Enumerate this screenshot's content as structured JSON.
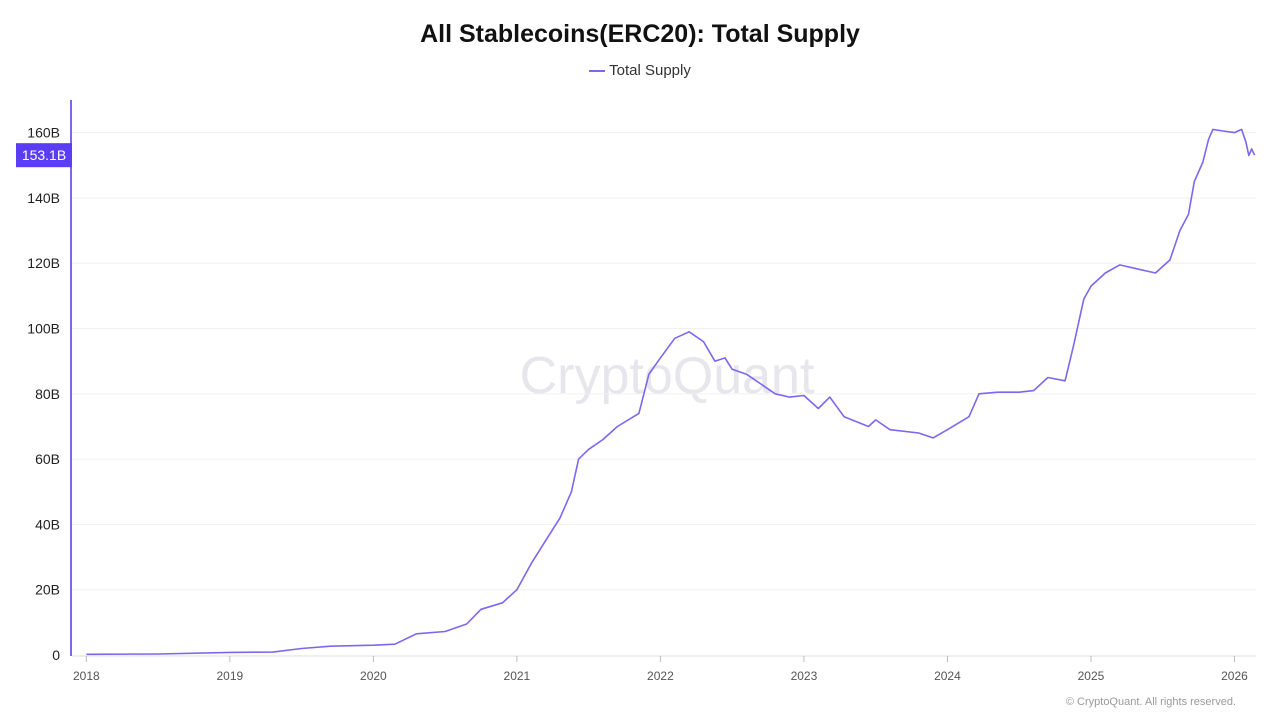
{
  "chart_data": {
    "type": "line",
    "title": "All Stablecoins(ERC20): Total Supply",
    "legend": [
      "Total Supply"
    ],
    "legend_position": "top-center",
    "series": [
      {
        "name": "Total Supply",
        "color": "#7B68EE",
        "points": [
          [
            2018.0,
            0.2
          ],
          [
            2018.5,
            0.3
          ],
          [
            2019.0,
            0.8
          ],
          [
            2019.3,
            0.9
          ],
          [
            2019.5,
            2.0
          ],
          [
            2019.7,
            2.7
          ],
          [
            2020.0,
            3.0
          ],
          [
            2020.15,
            3.3
          ],
          [
            2020.3,
            6.5
          ],
          [
            2020.5,
            7.2
          ],
          [
            2020.65,
            9.5
          ],
          [
            2020.75,
            14.0
          ],
          [
            2020.9,
            16.0
          ],
          [
            2021.0,
            20.0
          ],
          [
            2021.1,
            28.0
          ],
          [
            2021.2,
            35.0
          ],
          [
            2021.3,
            42.0
          ],
          [
            2021.38,
            50.0
          ],
          [
            2021.43,
            60.0
          ],
          [
            2021.5,
            63.0
          ],
          [
            2021.6,
            66.0
          ],
          [
            2021.7,
            70.0
          ],
          [
            2021.85,
            74.0
          ],
          [
            2021.92,
            86.0
          ],
          [
            2022.0,
            91.0
          ],
          [
            2022.1,
            97.0
          ],
          [
            2022.2,
            99.0
          ],
          [
            2022.3,
            96.0
          ],
          [
            2022.38,
            90.0
          ],
          [
            2022.45,
            91.0
          ],
          [
            2022.5,
            87.5
          ],
          [
            2022.6,
            86.0
          ],
          [
            2022.7,
            83.0
          ],
          [
            2022.8,
            80.0
          ],
          [
            2022.9,
            79.0
          ],
          [
            2023.0,
            79.5
          ],
          [
            2023.1,
            75.5
          ],
          [
            2023.18,
            79.0
          ],
          [
            2023.28,
            73.0
          ],
          [
            2023.45,
            70.0
          ],
          [
            2023.5,
            72.0
          ],
          [
            2023.6,
            69.0
          ],
          [
            2023.8,
            68.0
          ],
          [
            2023.9,
            66.5
          ],
          [
            2024.0,
            69.0
          ],
          [
            2024.15,
            73.0
          ],
          [
            2024.22,
            80.0
          ],
          [
            2024.35,
            80.5
          ],
          [
            2024.5,
            80.5
          ],
          [
            2024.6,
            81.0
          ],
          [
            2024.7,
            85.0
          ],
          [
            2024.82,
            84.0
          ],
          [
            2024.88,
            95.0
          ],
          [
            2024.95,
            109.0
          ],
          [
            2025.0,
            113.0
          ],
          [
            2025.1,
            117.0
          ],
          [
            2025.2,
            119.5
          ],
          [
            2025.35,
            118.0
          ],
          [
            2025.45,
            117.0
          ],
          [
            2025.55,
            121.0
          ],
          [
            2025.62,
            130.0
          ],
          [
            2025.68,
            135.0
          ],
          [
            2025.72,
            145.0
          ],
          [
            2025.78,
            151.0
          ],
          [
            2025.82,
            158.0
          ],
          [
            2025.85,
            161.0
          ],
          [
            2025.92,
            160.5
          ],
          [
            2026.0,
            160.0
          ],
          [
            2026.05,
            161.0
          ],
          [
            2026.08,
            157.0
          ],
          [
            2026.1,
            153.0
          ],
          [
            2026.12,
            155.0
          ],
          [
            2026.14,
            153.1
          ]
        ]
      }
    ],
    "x_ticks": [
      "2018",
      "2019",
      "2020",
      "2021",
      "2022",
      "2023",
      "2024",
      "2025",
      "2026"
    ],
    "xlim": [
      2017.9,
      2026.15
    ],
    "y_ticks": [
      0,
      20,
      40,
      60,
      80,
      100,
      120,
      140,
      160
    ],
    "y_tick_labels": [
      "0",
      "20B",
      "40B",
      "60B",
      "80B",
      "100B",
      "120B",
      "140B",
      "160B"
    ],
    "ylim": [
      0,
      170
    ],
    "current_value": 153.1,
    "current_value_label": "153.1B",
    "grid": true,
    "watermark": "CryptoQuant"
  },
  "footer": {
    "copyright": "© CryptoQuant. All rights reserved."
  }
}
